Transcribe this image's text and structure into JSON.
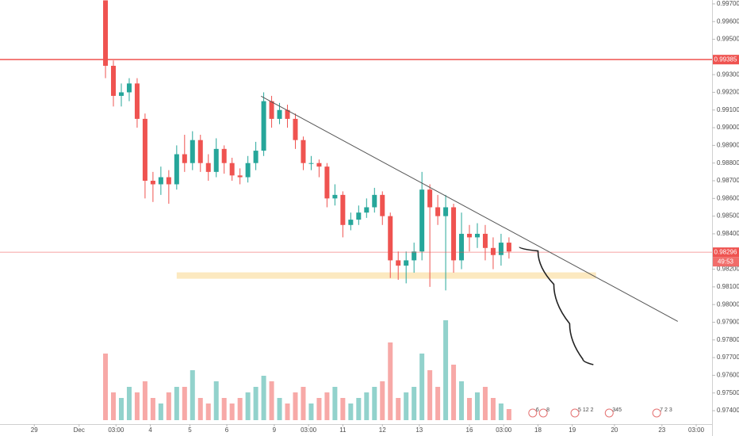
{
  "chart_data": {
    "type": "candlestick",
    "ylim": [
      0.97324,
      0.99722
    ],
    "yticks": [
      {
        "value": 0.974,
        "label": "0.97400"
      },
      {
        "value": 0.975,
        "label": "0.97500"
      },
      {
        "value": 0.976,
        "label": "0.97600"
      },
      {
        "value": 0.977,
        "label": "0.97700"
      },
      {
        "value": 0.978,
        "label": "0.97800"
      },
      {
        "value": 0.979,
        "label": "0.97900"
      },
      {
        "value": 0.98,
        "label": "0.98000"
      },
      {
        "value": 0.981,
        "label": "0.98100"
      },
      {
        "value": 0.982,
        "label": "0.98200"
      },
      {
        "value": 0.984,
        "label": "0.98400"
      },
      {
        "value": 0.985,
        "label": "0.98500"
      },
      {
        "value": 0.986,
        "label": "0.98600"
      },
      {
        "value": 0.987,
        "label": "0.98700"
      },
      {
        "value": 0.988,
        "label": "0.98800"
      },
      {
        "value": 0.989,
        "label": "0.98900"
      },
      {
        "value": 0.99,
        "label": "0.99000"
      },
      {
        "value": 0.991,
        "label": "0.99100"
      },
      {
        "value": 0.992,
        "label": "0.99200"
      },
      {
        "value": 0.993,
        "label": "0.99300"
      },
      {
        "value": 0.995,
        "label": "0.99500"
      },
      {
        "value": 0.996,
        "label": "0.99600"
      },
      {
        "value": 0.997,
        "label": "0.99700"
      }
    ],
    "xlim": [
      0,
      270
    ],
    "xticks": [
      {
        "value": 13,
        "label": "29"
      },
      {
        "value": 30,
        "label": "Dec"
      },
      {
        "value": 44,
        "label": "03:00"
      },
      {
        "value": 57,
        "label": "4"
      },
      {
        "value": 72,
        "label": "5"
      },
      {
        "value": 86,
        "label": "6"
      },
      {
        "value": 104,
        "label": "9"
      },
      {
        "value": 117,
        "label": "03:00"
      },
      {
        "value": 130,
        "label": "11"
      },
      {
        "value": 145,
        "label": "12"
      },
      {
        "value": 159,
        "label": "13"
      },
      {
        "value": 178,
        "label": "16"
      },
      {
        "value": 191,
        "label": "03:00"
      },
      {
        "value": 204,
        "label": "18"
      },
      {
        "value": 217,
        "label": "19"
      },
      {
        "value": 233,
        "label": "20"
      },
      {
        "value": 251,
        "label": "23"
      },
      {
        "value": 264,
        "label": "03:00"
      }
    ],
    "grid": false,
    "up_color": "#26a69a",
    "down_color": "#ef5350",
    "x": [
      40,
      43,
      46,
      49,
      52,
      55,
      58,
      61,
      64,
      67,
      70,
      73,
      76,
      79,
      82,
      85,
      88,
      91,
      94,
      97,
      100,
      103,
      106,
      109,
      112,
      115,
      118,
      121,
      124,
      127,
      130,
      133,
      136,
      139,
      142,
      145,
      148,
      151,
      154,
      157,
      160,
      163,
      166,
      169,
      172,
      175,
      178,
      181,
      184,
      187,
      190,
      193
    ],
    "open": [
      0.9972,
      0.9935,
      0.9918,
      0.992,
      0.9925,
      0.9905,
      0.987,
      0.9868,
      0.9872,
      0.9868,
      0.9885,
      0.988,
      0.9893,
      0.988,
      0.9875,
      0.9888,
      0.988,
      0.9873,
      0.9872,
      0.988,
      0.9887,
      0.9915,
      0.9905,
      0.991,
      0.9905,
      0.9893,
      0.988,
      0.988,
      0.9878,
      0.986,
      0.9862,
      0.9845,
      0.9848,
      0.9852,
      0.9855,
      0.9862,
      0.985,
      0.9825,
      0.9822,
      0.9825,
      0.983,
      0.9865,
      0.9855,
      0.985,
      0.9855,
      0.9825,
      0.984,
      0.9838,
      0.984,
      0.9832,
      0.9828,
      0.9835
    ],
    "high": [
      0.9972,
      0.9938,
      0.9925,
      0.9928,
      0.9928,
      0.9908,
      0.9875,
      0.9878,
      0.9876,
      0.989,
      0.9896,
      0.9898,
      0.9896,
      0.9885,
      0.9894,
      0.989,
      0.9883,
      0.9877,
      0.9884,
      0.9892,
      0.992,
      0.9918,
      0.9914,
      0.9913,
      0.9908,
      0.9895,
      0.9884,
      0.9882,
      0.988,
      0.9868,
      0.9864,
      0.9852,
      0.9856,
      0.986,
      0.9866,
      0.9864,
      0.9852,
      0.983,
      0.983,
      0.9835,
      0.9875,
      0.9868,
      0.9862,
      0.9862,
      0.9857,
      0.9852,
      0.9845,
      0.9846,
      0.9845,
      0.9838,
      0.984,
      0.9838
    ],
    "low": [
      0.9928,
      0.9912,
      0.9912,
      0.9915,
      0.99,
      0.986,
      0.9858,
      0.9862,
      0.9857,
      0.9865,
      0.9875,
      0.9876,
      0.9875,
      0.987,
      0.9872,
      0.9874,
      0.987,
      0.9868,
      0.9869,
      0.9876,
      0.9884,
      0.99,
      0.9902,
      0.99,
      0.9888,
      0.9876,
      0.9876,
      0.9872,
      0.9855,
      0.9856,
      0.9838,
      0.9842,
      0.9845,
      0.9849,
      0.9852,
      0.9845,
      0.9815,
      0.9814,
      0.9812,
      0.9818,
      0.9825,
      0.981,
      0.9845,
      0.9808,
      0.9818,
      0.982,
      0.983,
      0.9832,
      0.9825,
      0.982,
      0.9822,
      0.9826
    ],
    "close": [
      0.9935,
      0.9918,
      0.992,
      0.9925,
      0.9905,
      0.987,
      0.9868,
      0.9872,
      0.9868,
      0.9885,
      0.988,
      0.9893,
      0.988,
      0.9875,
      0.9888,
      0.988,
      0.9873,
      0.9872,
      0.988,
      0.9887,
      0.9915,
      0.9905,
      0.991,
      0.9905,
      0.9893,
      0.988,
      0.988,
      0.9878,
      0.986,
      0.9862,
      0.9845,
      0.9848,
      0.9852,
      0.9855,
      0.9862,
      0.985,
      0.9825,
      0.9822,
      0.9825,
      0.983,
      0.9865,
      0.9855,
      0.985,
      0.9855,
      0.9825,
      0.984,
      0.9838,
      0.984,
      0.9832,
      0.9828,
      0.9835,
      0.983
    ],
    "volume_lim": [
      0,
      100
    ],
    "volume": [
      60,
      25,
      20,
      30,
      25,
      35,
      20,
      15,
      25,
      30,
      30,
      45,
      20,
      15,
      35,
      20,
      15,
      20,
      25,
      30,
      40,
      35,
      20,
      15,
      25,
      30,
      15,
      20,
      25,
      30,
      20,
      15,
      20,
      25,
      30,
      35,
      70,
      20,
      25,
      30,
      60,
      45,
      30,
      90,
      50,
      35,
      20,
      25,
      30,
      20,
      15,
      10
    ],
    "last_price": {
      "value": 0.98296,
      "label": "0.98296"
    },
    "countdown": "49:53",
    "level_line": {
      "value": 0.99385,
      "label": "0.99385"
    },
    "trendline": {
      "x": [
        99,
        257
      ],
      "y": [
        0.99178,
        0.97905
      ]
    },
    "zone": {
      "x": [
        67,
        226
      ],
      "y": [
        0.98146,
        0.98182
      ]
    },
    "projection": {
      "x": [
        197,
        204,
        210,
        216,
        221,
        225
      ],
      "y": [
        0.98325,
        0.98303,
        0.98115,
        0.97892,
        0.97691,
        0.9766
      ]
    },
    "events": [
      {
        "x": 202,
        "label": "6"
      },
      {
        "x": 206,
        "label": "8"
      },
      {
        "x": 218,
        "label": "5 12 2"
      },
      {
        "x": 231,
        "label": "345"
      },
      {
        "x": 249,
        "label": "7 2 3"
      }
    ]
  }
}
